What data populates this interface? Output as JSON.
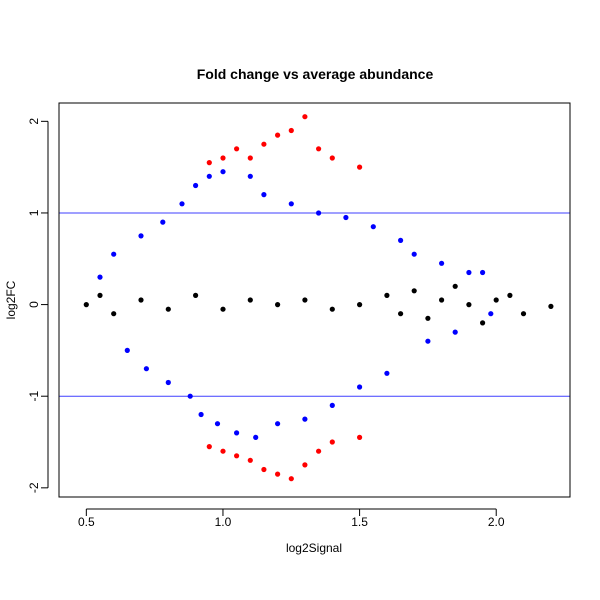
{
  "chart_data": {
    "type": "scatter",
    "title": "Fold change vs average abundance",
    "xlabel": "log2Signal",
    "ylabel": "log2FC",
    "xlim": [
      0.4,
      2.27
    ],
    "ylim": [
      -2.1,
      2.2
    ],
    "x_ticks": [
      0.5,
      1.0,
      1.5,
      2.0
    ],
    "x_tick_labels": [
      "0.5",
      "1.0",
      "1.5",
      "2.0"
    ],
    "y_ticks": [
      -2,
      -1,
      0,
      1,
      2
    ],
    "y_tick_labels": [
      "-2",
      "-1",
      "0",
      "1",
      "2"
    ],
    "reference_lines_y": [
      1,
      -1
    ],
    "reference_line_color": "#0000ff",
    "grid": false,
    "legend": "none",
    "series": [
      {
        "color": "#0000ff",
        "points": [
          [
            0.55,
            0.3
          ],
          [
            0.6,
            0.55
          ],
          [
            0.65,
            -0.5
          ],
          [
            0.7,
            0.75
          ],
          [
            0.72,
            -0.7
          ],
          [
            0.78,
            0.9
          ],
          [
            0.8,
            -0.85
          ],
          [
            0.85,
            1.1
          ],
          [
            0.88,
            -1.0
          ],
          [
            0.9,
            1.3
          ],
          [
            0.92,
            -1.2
          ],
          [
            0.95,
            1.4
          ],
          [
            0.98,
            -1.3
          ],
          [
            1.0,
            1.45
          ],
          [
            1.05,
            -1.4
          ],
          [
            1.1,
            1.4
          ],
          [
            1.12,
            -1.45
          ],
          [
            1.15,
            1.2
          ],
          [
            1.2,
            -1.3
          ],
          [
            1.25,
            1.1
          ],
          [
            1.3,
            -1.25
          ],
          [
            1.35,
            1.0
          ],
          [
            1.4,
            -1.1
          ],
          [
            1.45,
            0.95
          ],
          [
            1.5,
            -0.9
          ],
          [
            1.55,
            0.85
          ],
          [
            1.6,
            -0.75
          ],
          [
            1.65,
            0.7
          ],
          [
            1.7,
            0.55
          ],
          [
            1.75,
            -0.4
          ],
          [
            1.8,
            0.45
          ],
          [
            1.85,
            -0.3
          ],
          [
            1.9,
            0.35
          ],
          [
            1.95,
            0.35
          ],
          [
            1.98,
            -0.1
          ]
        ]
      },
      {
        "color": "#000000",
        "points": [
          [
            0.5,
            0.0
          ],
          [
            0.55,
            0.1
          ],
          [
            0.6,
            -0.1
          ],
          [
            0.7,
            0.05
          ],
          [
            0.8,
            -0.05
          ],
          [
            0.9,
            0.1
          ],
          [
            1.0,
            -0.05
          ],
          [
            1.1,
            0.05
          ],
          [
            1.2,
            0.0
          ],
          [
            1.3,
            0.05
          ],
          [
            1.4,
            -0.05
          ],
          [
            1.5,
            0.0
          ],
          [
            1.6,
            0.1
          ],
          [
            1.65,
            -0.1
          ],
          [
            1.7,
            0.15
          ],
          [
            1.75,
            -0.15
          ],
          [
            1.8,
            0.05
          ],
          [
            1.85,
            0.2
          ],
          [
            1.9,
            0.0
          ],
          [
            1.95,
            -0.2
          ],
          [
            2.0,
            0.05
          ],
          [
            2.05,
            0.1
          ],
          [
            2.1,
            -0.1
          ],
          [
            2.2,
            -0.02
          ]
        ]
      },
      {
        "color": "#ff0000",
        "points": [
          [
            0.95,
            1.55
          ],
          [
            1.0,
            1.6
          ],
          [
            1.05,
            1.7
          ],
          [
            1.1,
            1.6
          ],
          [
            1.15,
            1.75
          ],
          [
            1.2,
            1.85
          ],
          [
            1.25,
            1.9
          ],
          [
            1.3,
            2.05
          ],
          [
            1.35,
            1.7
          ],
          [
            1.4,
            1.6
          ],
          [
            1.5,
            1.5
          ],
          [
            0.95,
            -1.55
          ],
          [
            1.0,
            -1.6
          ],
          [
            1.05,
            -1.65
          ],
          [
            1.1,
            -1.7
          ],
          [
            1.15,
            -1.8
          ],
          [
            1.2,
            -1.85
          ],
          [
            1.25,
            -1.9
          ],
          [
            1.3,
            -1.75
          ],
          [
            1.35,
            -1.6
          ],
          [
            1.4,
            -1.5
          ],
          [
            1.5,
            -1.45
          ]
        ]
      }
    ]
  }
}
